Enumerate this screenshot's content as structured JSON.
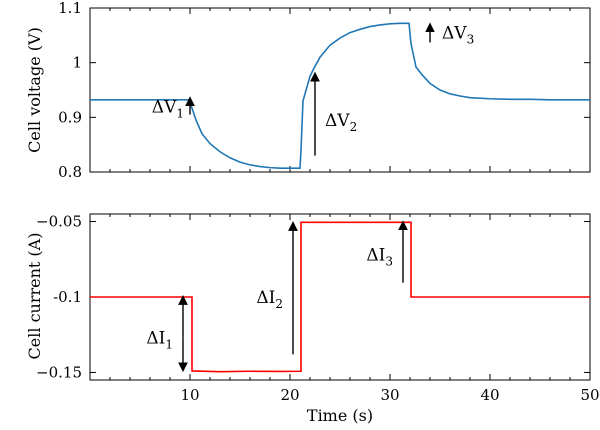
{
  "chart_data": [
    {
      "type": "line",
      "ylabel": "Cell voltage (V)",
      "xlim": [
        0,
        50
      ],
      "ylim": [
        0.8,
        1.1
      ],
      "x_ticks": [
        10,
        20,
        30,
        40,
        50
      ],
      "y_ticks": [
        "0.8",
        "0.9",
        "1",
        "1.1"
      ],
      "grid": false,
      "color": "#1f77b4",
      "series": [
        {
          "x": [
            0,
            2,
            4,
            6,
            8,
            9.9,
            10.05,
            10.6,
            11.2,
            12,
            13,
            14,
            15,
            16,
            17,
            18,
            19,
            20,
            21,
            21.1,
            21.3,
            22.0,
            22.4,
            23,
            24,
            25,
            26,
            27,
            28,
            29,
            30,
            31,
            31.9,
            32.1,
            32.6,
            33.2,
            34,
            35,
            36,
            37,
            38,
            40,
            42,
            44,
            46,
            48,
            50
          ],
          "y": [
            0.932,
            0.932,
            0.932,
            0.932,
            0.932,
            0.932,
            0.925,
            0.895,
            0.87,
            0.852,
            0.837,
            0.826,
            0.818,
            0.813,
            0.81,
            0.808,
            0.807,
            0.807,
            0.807,
            0.84,
            0.93,
            0.975,
            0.99,
            1.01,
            1.032,
            1.045,
            1.055,
            1.061,
            1.066,
            1.069,
            1.071,
            1.072,
            1.072,
            1.035,
            0.992,
            0.978,
            0.962,
            0.95,
            0.943,
            0.939,
            0.936,
            0.934,
            0.933,
            0.933,
            0.932,
            0.932,
            0.932
          ]
        }
      ],
      "annotations": [
        {
          "base": "ΔV",
          "sub": "1",
          "x": 10,
          "y_from": 0.905,
          "y_to": 0.935,
          "direction": "up"
        },
        {
          "base": "ΔV",
          "sub": "2",
          "x": 22.5,
          "y_from": 0.83,
          "y_to": 0.98,
          "direction": "up"
        },
        {
          "base": "ΔV",
          "sub": "3",
          "x": 34,
          "y_from": 1.037,
          "y_to": 1.07,
          "direction": "up"
        }
      ]
    },
    {
      "type": "line",
      "xlabel": "Time (s)",
      "ylabel": "Cell current (A)",
      "xlim": [
        0,
        50
      ],
      "ylim": [
        -0.155,
        -0.045
      ],
      "x_ticks": [
        10,
        20,
        30,
        40,
        50
      ],
      "y_ticks": [
        "−0.05",
        "-0.1",
        "−0.15"
      ],
      "grid": false,
      "color": "#ff0000",
      "series": [
        {
          "x": [
            0,
            10.2,
            10.2,
            13,
            16,
            19,
            21.1,
            21.1,
            32.1,
            32.1,
            50
          ],
          "y": [
            -0.1,
            -0.1,
            -0.149,
            -0.1495,
            -0.1492,
            -0.1493,
            -0.1492,
            -0.0505,
            -0.0505,
            -0.1,
            -0.1
          ]
        }
      ],
      "annotations": [
        {
          "base": "ΔI",
          "sub": "1",
          "x": 9.3,
          "y_from": -0.127,
          "y_to": -0.1,
          "direction": "both",
          "y_to2": -0.1485
        },
        {
          "base": "ΔI",
          "sub": "2",
          "x": 20.3,
          "y_from": -0.138,
          "y_to": -0.051,
          "direction": "up"
        },
        {
          "base": "ΔI",
          "sub": "3",
          "x": 31.3,
          "y_from": -0.0905,
          "y_to": -0.0505,
          "direction": "up"
        }
      ]
    }
  ]
}
